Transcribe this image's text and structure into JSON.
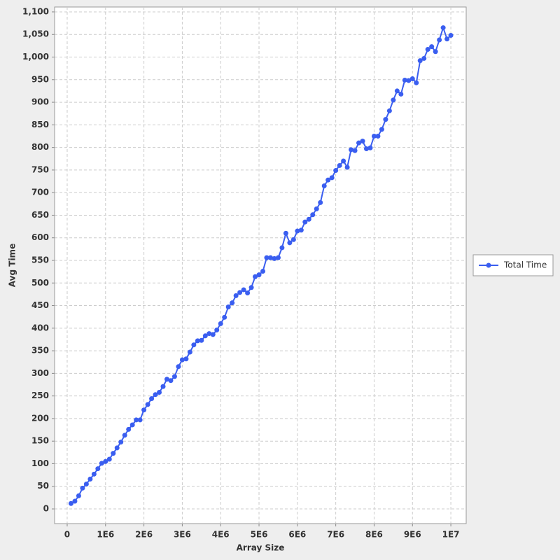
{
  "chart_data": {
    "type": "line",
    "x_label": "Array Size",
    "y_label": "Avg Time",
    "x": [
      100000,
      200000,
      300000,
      400000,
      500000,
      600000,
      700000,
      800000,
      900000,
      1000000,
      1100000,
      1200000,
      1300000,
      1400000,
      1500000,
      1600000,
      1700000,
      1800000,
      1900000,
      2000000,
      2100000,
      2200000,
      2300000,
      2400000,
      2500000,
      2600000,
      2700000,
      2800000,
      2900000,
      3000000,
      3100000,
      3200000,
      3300000,
      3400000,
      3500000,
      3600000,
      3700000,
      3800000,
      3900000,
      4000000,
      4100000,
      4200000,
      4300000,
      4400000,
      4500000,
      4600000,
      4700000,
      4800000,
      4900000,
      5000000,
      5100000,
      5200000,
      5300000,
      5400000,
      5500000,
      5600000,
      5700000,
      5800000,
      5900000,
      6000000,
      6100000,
      6200000,
      6300000,
      6400000,
      6500000,
      6600000,
      6700000,
      6800000,
      6900000,
      7000000,
      7100000,
      7200000,
      7300000,
      7400000,
      7500000,
      7600000,
      7700000,
      7800000,
      7900000,
      8000000,
      8100000,
      8200000,
      8300000,
      8400000,
      8500000,
      8600000,
      8700000,
      8800000,
      8900000,
      9000000,
      9100000,
      9200000,
      9300000,
      9400000,
      9500000,
      9600000,
      9700000,
      9800000,
      9900000,
      10000000
    ],
    "series": [
      {
        "name": "Total Time",
        "color": "#3a5ef0",
        "values": [
          12,
          17,
          29,
          46,
          55,
          66,
          77,
          89,
          101,
          105,
          110,
          123,
          135,
          148,
          163,
          176,
          186,
          197,
          197,
          219,
          231,
          244,
          253,
          258,
          271,
          287,
          284,
          293,
          315,
          330,
          332,
          347,
          363,
          372,
          373,
          383,
          388,
          386,
          396,
          410,
          424,
          447,
          456,
          472,
          479,
          485,
          478,
          490,
          514,
          518,
          526,
          556,
          556,
          554,
          556,
          578,
          610,
          589,
          596,
          615,
          617,
          635,
          641,
          651,
          664,
          678,
          715,
          728,
          733,
          749,
          760,
          770,
          756,
          795,
          793,
          810,
          814,
          797,
          799,
          825,
          825,
          840,
          862,
          881,
          905,
          925,
          918,
          949,
          948,
          952,
          943,
          992,
          997,
          1017,
          1023,
          1012,
          1038,
          1065,
          1040,
          1048
        ]
      }
    ],
    "xlim": [
      -328000,
      10400000
    ],
    "xticks": [
      0,
      {
        "value": 1000000,
        "label": "1E6"
      },
      {
        "value": 2000000,
        "label": "2E6"
      },
      {
        "value": 3000000,
        "label": "3E6"
      },
      {
        "value": 4000000,
        "label": "4E6"
      },
      {
        "value": 5000000,
        "label": "5E6"
      },
      {
        "value": 6000000,
        "label": "6E6"
      },
      {
        "value": 7000000,
        "label": "7E6"
      },
      {
        "value": 8000000,
        "label": "8E6"
      },
      {
        "value": 9000000,
        "label": "9E6"
      },
      {
        "value": 10000000,
        "label": "1E7"
      }
    ],
    "ylim": [
      -32.5,
      1110.8
    ],
    "yticks": [
      0,
      50,
      100,
      150,
      200,
      250,
      300,
      350,
      400,
      450,
      500,
      550,
      600,
      650,
      700,
      750,
      800,
      850,
      900,
      950,
      {
        "value": 1000,
        "label": "1,000"
      },
      {
        "value": 1050,
        "label": "1,050"
      },
      {
        "value": 1100,
        "label": "1,100"
      }
    ],
    "grid": true,
    "legend": "right"
  }
}
